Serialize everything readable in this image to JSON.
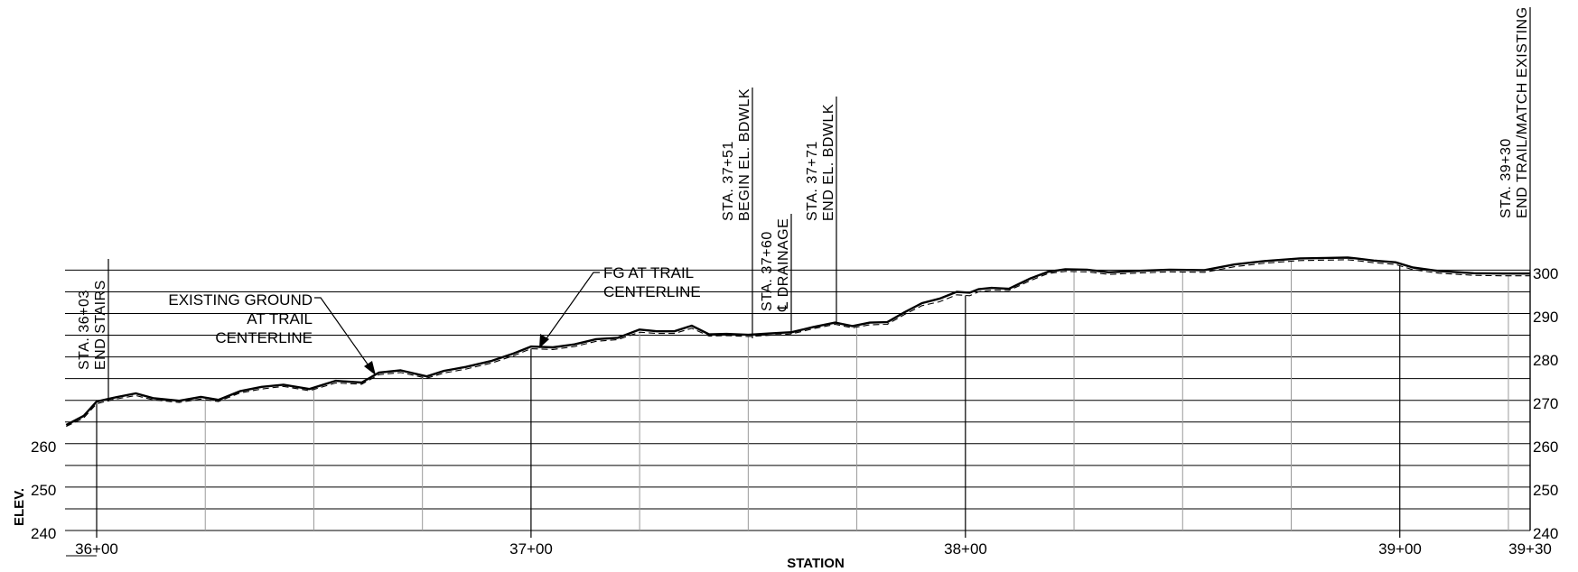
{
  "chart_data": {
    "type": "line",
    "title": "",
    "xlabel": "STATION",
    "ylabel": "ELEV.",
    "xlim": [
      3600,
      3930
    ],
    "ylim": [
      240,
      300
    ],
    "grid": true,
    "x_ticks": [
      {
        "value": 3600,
        "label": "36+00"
      },
      {
        "value": 3700,
        "label": "37+00"
      },
      {
        "value": 3800,
        "label": "38+00"
      },
      {
        "value": 3900,
        "label": "39+00"
      },
      {
        "value": 3930,
        "label": "39+30"
      }
    ],
    "y_ticks_left": [
      "240",
      "250",
      "260"
    ],
    "y_ticks_right": [
      "240",
      "250",
      "260",
      "270",
      "280",
      "290",
      "300"
    ],
    "series": [
      {
        "name": "FG AT TRAIL CENTERLINE",
        "style": "solid",
        "x": [
          3593,
          3597,
          3600,
          3604,
          3609,
          3613,
          3619,
          3624,
          3628,
          3633,
          3638,
          3643,
          3649,
          3655,
          3661,
          3665,
          3670,
          3676,
          3680,
          3685,
          3691,
          3696,
          3700,
          3705,
          3710,
          3715,
          3720,
          3725,
          3729,
          3733,
          3737,
          3741,
          3745,
          3750,
          3755,
          3760,
          3765,
          3770,
          3774,
          3778,
          3782,
          3786,
          3790,
          3794,
          3798,
          3801,
          3803,
          3806,
          3810,
          3815,
          3819,
          3823,
          3828,
          3833,
          3839,
          3847,
          3855,
          3862,
          3869,
          3877,
          3883,
          3888,
          3890,
          3894,
          3899,
          3903,
          3909,
          3917,
          3924,
          3930
        ],
        "y": [
          264.3,
          266.4,
          269.7,
          270.6,
          271.6,
          270.5,
          269.9,
          270.8,
          270.1,
          272.1,
          273.1,
          273.6,
          272.6,
          274.5,
          274.1,
          276.4,
          276.9,
          275.5,
          276.8,
          277.7,
          279.1,
          280.8,
          282.4,
          282.2,
          282.9,
          284.1,
          284.4,
          286.3,
          285.9,
          285.9,
          287.2,
          285.2,
          285.3,
          285.1,
          285.4,
          285.7,
          286.9,
          287.9,
          287.1,
          287.9,
          288.0,
          290.3,
          292.4,
          293.4,
          295.0,
          294.8,
          295.6,
          295.9,
          295.7,
          298.1,
          299.6,
          300.2,
          300.1,
          299.5,
          299.8,
          300.1,
          300.0,
          301.3,
          302.1,
          302.7,
          302.8,
          302.9,
          302.7,
          302.2,
          301.8,
          300.6,
          299.8,
          299.3,
          299.2,
          299.2
        ],
        "color": "#000000"
      },
      {
        "name": "EXISTING GROUND AT TRAIL CENTERLINE",
        "style": "dashed",
        "x": [
          3593,
          3597,
          3600,
          3604,
          3609,
          3613,
          3619,
          3624,
          3628,
          3633,
          3638,
          3643,
          3649,
          3655,
          3661,
          3665,
          3670,
          3676,
          3680,
          3685,
          3691,
          3696,
          3700,
          3705,
          3710,
          3715,
          3720,
          3725,
          3729,
          3733,
          3737,
          3741,
          3745,
          3750,
          3755,
          3760,
          3765,
          3770,
          3774,
          3778,
          3782,
          3786,
          3790,
          3794,
          3798,
          3801,
          3803,
          3806,
          3810,
          3815,
          3819,
          3823,
          3828,
          3833,
          3839,
          3847,
          3855,
          3862,
          3869,
          3877,
          3883,
          3888,
          3890,
          3894,
          3899,
          3903,
          3909,
          3917,
          3924,
          3930
        ],
        "y": [
          264.0,
          265.9,
          269.2,
          270.2,
          271.1,
          270.1,
          269.5,
          270.3,
          269.7,
          271.7,
          272.6,
          273.2,
          272.2,
          274.0,
          273.7,
          275.9,
          276.4,
          275.1,
          276.3,
          277.2,
          278.6,
          280.3,
          281.9,
          281.7,
          282.4,
          283.6,
          284.0,
          285.7,
          285.4,
          285.4,
          286.6,
          284.8,
          284.9,
          284.7,
          285.0,
          285.3,
          286.5,
          287.5,
          286.7,
          287.4,
          287.5,
          289.8,
          291.8,
          292.7,
          294.3,
          294.1,
          295.0,
          295.4,
          295.3,
          297.6,
          299.2,
          299.7,
          299.6,
          299.0,
          299.3,
          299.6,
          299.5,
          300.8,
          301.6,
          302.2,
          302.3,
          302.4,
          302.2,
          301.7,
          301.3,
          300.1,
          299.3,
          298.8,
          298.7,
          298.7
        ],
        "color": "#000000"
      }
    ],
    "annotations": [
      {
        "station": 3603,
        "lines": [
          "STA. 36+03",
          "END STAIRS"
        ]
      },
      {
        "station": 3751,
        "lines": [
          "STA. 37+51",
          "BEGIN EL. BDWLK"
        ]
      },
      {
        "station": 3760,
        "lines": [
          "STA. 37+60",
          "℄ DRAINAGE"
        ]
      },
      {
        "station": 3771,
        "lines": [
          "STA. 37+71",
          "END EL. BDWLK"
        ]
      },
      {
        "station": 3930,
        "lines": [
          "STA. 39+30",
          "END TRAIL/MATCH EXISTING"
        ]
      }
    ],
    "callouts": [
      {
        "lines": [
          "EXISTING GROUND",
          "AT TRAIL",
          "CENTERLINE"
        ]
      },
      {
        "lines": [
          "FG AT TRAIL",
          "CENTERLINE"
        ]
      }
    ]
  }
}
